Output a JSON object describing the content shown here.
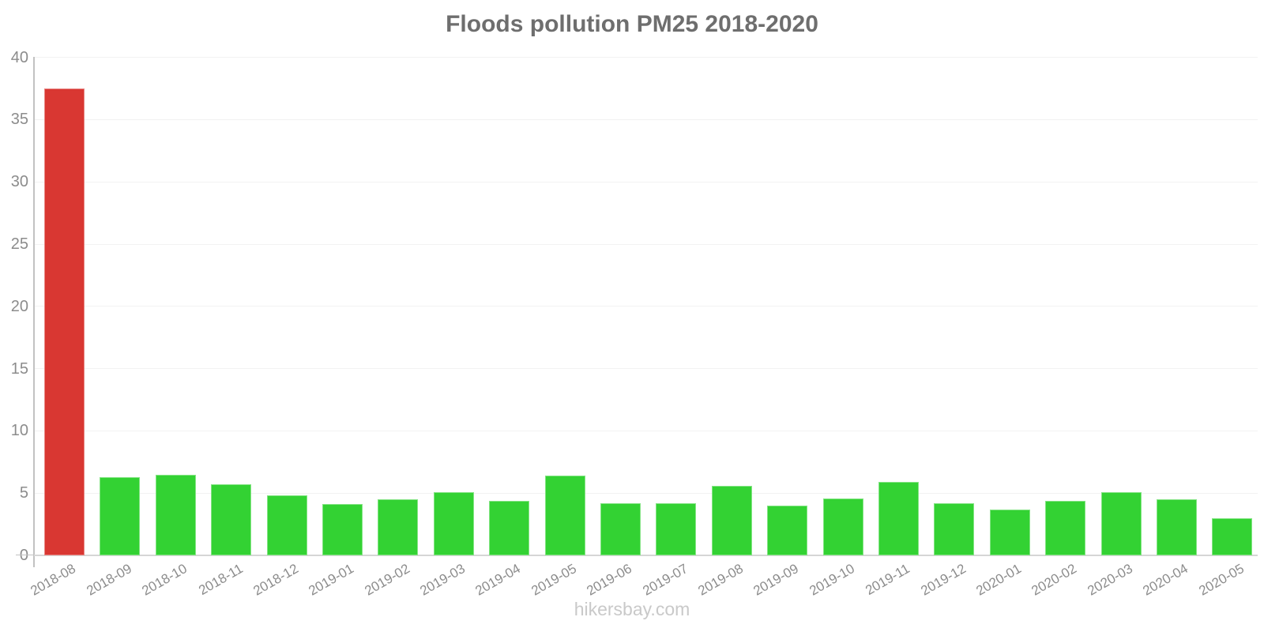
{
  "chart_data": {
    "type": "bar",
    "title": "Floods pollution PM25 2018-2020",
    "xlabel": "",
    "ylabel": "",
    "ylim": [
      0,
      40
    ],
    "yticks": [
      0,
      5,
      10,
      15,
      20,
      25,
      30,
      35,
      40
    ],
    "grid": true,
    "legend": "none",
    "categories": [
      "2018-08",
      "2018-09",
      "2018-10",
      "2018-11",
      "2018-12",
      "2019-01",
      "2019-02",
      "2019-03",
      "2019-04",
      "2019-05",
      "2019-06",
      "2019-07",
      "2019-08",
      "2019-09",
      "2019-10",
      "2019-11",
      "2019-12",
      "2020-01",
      "2020-02",
      "2020-03",
      "2020-04",
      "2020-05"
    ],
    "values": [
      37.5,
      6.3,
      6.5,
      5.7,
      4.8,
      4.1,
      4.5,
      5.1,
      4.4,
      6.4,
      4.2,
      4.2,
      5.6,
      4.0,
      4.6,
      5.9,
      4.2,
      3.7,
      4.4,
      5.1,
      4.5,
      3.0
    ],
    "highlight_index": 0,
    "colors": {
      "highlight_bar": "#d93732",
      "normal_bar": "#33d233",
      "title_text": "#6e6e6e",
      "axis_text": "#8c8c8c",
      "watermark_text": "#c9c9c9",
      "gridline": "#f2f2f2",
      "axis_line": "#c2c2c2",
      "baseline": "#d6d6d6"
    },
    "watermark": "hikersbay.com"
  }
}
